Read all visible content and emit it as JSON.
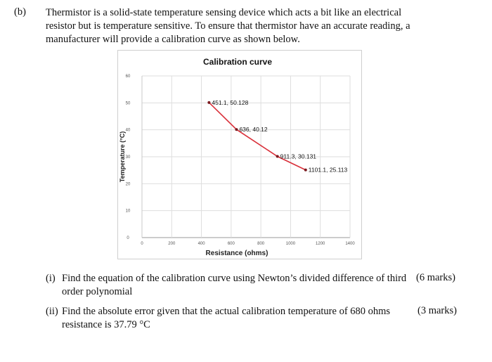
{
  "question": {
    "part_label": "(b)",
    "intro_lines": [
      "Thermistor is a solid-state temperature sensing device which acts a bit like an electrical",
      "resistor but is temperature sensitive. To ensure that thermistor have an accurate reading, a",
      "manufacturer will provide a calibration curve as shown below."
    ],
    "sub_questions": [
      {
        "number": "(i)",
        "lines": [
          "Find the equation of the calibration curve using Newton’s divided difference of third",
          "order polynomial"
        ],
        "marks": "(6 marks)"
      },
      {
        "number": "(ii)",
        "lines": [
          "Find the absolute error given that the actual calibration temperature of 680 ohms",
          "resistance is 37.79 °C"
        ],
        "marks": "(3 marks)"
      }
    ]
  },
  "chart_data": {
    "type": "line",
    "title": "Calibration curve",
    "xlabel": "Resistance (ohms)",
    "ylabel": "Temperature (°C)",
    "xlim": [
      0,
      1400
    ],
    "ylim": [
      0,
      60
    ],
    "x_ticks": [
      0,
      200,
      400,
      600,
      800,
      1000,
      1200,
      1400
    ],
    "y_ticks": [
      0,
      10,
      20,
      30,
      40,
      50,
      60
    ],
    "grid": true,
    "series": [
      {
        "color": "#d9303a",
        "points": [
          {
            "x": 451.1,
            "y": 50.128,
            "label": "451.1, 50.128"
          },
          {
            "x": 636,
            "y": 40.12,
            "label": "636, 40.12"
          },
          {
            "x": 911.3,
            "y": 30.131,
            "label": "911.3, 30.131"
          },
          {
            "x": 1101.1,
            "y": 25.113,
            "label": "1101.1, 25.113"
          }
        ]
      }
    ]
  }
}
